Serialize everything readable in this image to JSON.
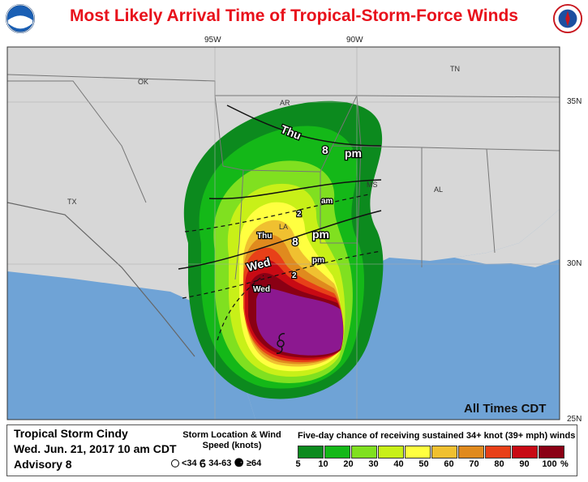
{
  "title": "Most Likely Arrival Time of Tropical-Storm-Force Winds",
  "longitudes": [
    "95W",
    "90W"
  ],
  "latitudes": [
    "35N",
    "30N",
    "25N"
  ],
  "states": [
    "OK",
    "AR",
    "TN",
    "TX",
    "LA",
    "MS",
    "AL"
  ],
  "arrival_labels": {
    "thu_8pm": [
      "Thu",
      "8",
      "pm"
    ],
    "thu_2am": [
      "Thu",
      "2",
      "am"
    ],
    "wed_8pm": [
      "Wed",
      "8",
      "pm"
    ],
    "wed_2pm": [
      "Wed",
      "2",
      "pm"
    ]
  },
  "all_times_note": "All Times CDT",
  "storm": {
    "name": "Tropical Storm Cindy",
    "issued": "Wed. Jun. 21, 2017  10 am CDT",
    "advisory": "Advisory 8"
  },
  "location_legend": {
    "title": "Storm Location & Wind Speed (knots)",
    "items": [
      "<34",
      "34-63",
      "≥64"
    ]
  },
  "probability_legend": {
    "title": "Five-day chance of receiving sustained 34+ knot (39+ mph) winds",
    "levels": [
      "5",
      "10",
      "20",
      "30",
      "40",
      "50",
      "60",
      "70",
      "80",
      "90",
      "100"
    ],
    "unit": "%",
    "colors": [
      "#0c8a1e",
      "#14b818",
      "#80e020",
      "#c8f018",
      "#ffff40",
      "#f0c030",
      "#e08a1e",
      "#e84018",
      "#c80a14",
      "#8a0014",
      "#8c1890"
    ]
  },
  "colors": {
    "ocean": "#6fa3d6",
    "land": "#d7d7d7",
    "title": "#e8111b"
  }
}
